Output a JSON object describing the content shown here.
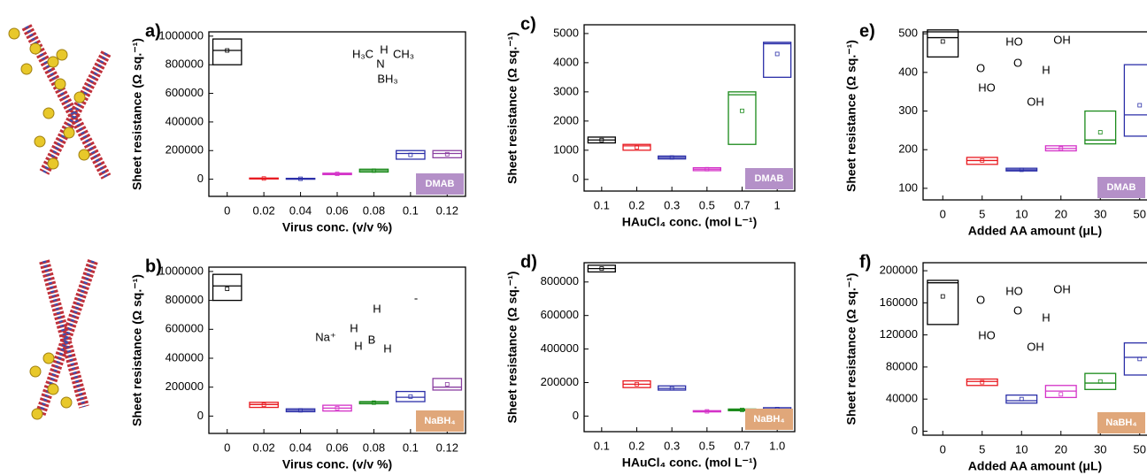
{
  "chart_data": [
    {
      "type": "box",
      "panel_label": "a)",
      "ylabel": "Sheet resistance (Ω sq.⁻¹)",
      "xlabel": "Virus conc. (v/v %)",
      "categories": [
        "0",
        "0.02",
        "0.04",
        "0.06",
        "0.08",
        "0.1",
        "0.12"
      ],
      "colors": [
        "#000000",
        "#e8191f",
        "#2b2fa8",
        "#d433c8",
        "#1a8a1a",
        "#2b2fa8",
        "#8a3fa0"
      ],
      "q1": [
        800000,
        2000,
        1000,
        32000,
        50000,
        140000,
        150000
      ],
      "q3": [
        980000,
        8000,
        6000,
        42000,
        70000,
        200000,
        200000
      ],
      "median": [
        900000,
        5000,
        3000,
        38000,
        60000,
        180000,
        180000
      ],
      "mean": [
        900000,
        5000,
        3000,
        37000,
        60000,
        170000,
        175000
      ],
      "ylim": [
        -120000,
        1030000
      ],
      "yticks": [
        0,
        200000,
        400000,
        600000,
        800000,
        1000000
      ],
      "badge": "DMAB",
      "badge_color": "#b490c8",
      "annotations": [
        "H₃C",
        "H",
        "N",
        "CH₃",
        "BH₃"
      ]
    },
    {
      "type": "box",
      "panel_label": "b)",
      "ylabel": "Sheet resistance (Ω sq.⁻¹)",
      "xlabel": "Virus conc. (v/v %)",
      "categories": [
        "0",
        "0.02",
        "0.04",
        "0.06",
        "0.08",
        "0.1",
        "0.12"
      ],
      "colors": [
        "#000000",
        "#e8191f",
        "#2b2fa8",
        "#d433c8",
        "#1a8a1a",
        "#2b2fa8",
        "#8a3fa0"
      ],
      "q1": [
        800000,
        60000,
        30000,
        35000,
        85000,
        100000,
        180000
      ],
      "q3": [
        980000,
        95000,
        50000,
        75000,
        100000,
        170000,
        260000
      ],
      "median": [
        900000,
        80000,
        40000,
        55000,
        95000,
        130000,
        200000
      ],
      "mean": [
        880000,
        78000,
        40000,
        55000,
        93000,
        135000,
        220000
      ],
      "ylim": [
        -120000,
        1030000
      ],
      "yticks": [
        0,
        200000,
        400000,
        600000,
        800000,
        1000000
      ],
      "badge": "NaBH₄",
      "badge_color": "#e0a77a",
      "annotations": [
        "Na⁺",
        "H",
        "H",
        "B",
        "H",
        "H",
        "-"
      ]
    },
    {
      "type": "box",
      "panel_label": "c)",
      "ylabel": "Sheet resistance (Ω sq.⁻¹)",
      "xlabel": "HAuCl₄ conc. (mol L⁻¹)",
      "categories": [
        "0.1",
        "0.2",
        "0.3",
        "0.5",
        "0.7",
        "1"
      ],
      "colors": [
        "#000000",
        "#e8191f",
        "#2b2fa8",
        "#d433c8",
        "#1a8a1a",
        "#2b2fa8"
      ],
      "q1": [
        1250,
        1000,
        700,
        300,
        1200,
        3500
      ],
      "q3": [
        1450,
        1200,
        800,
        400,
        3000,
        4700
      ],
      "median": [
        1350,
        1150,
        750,
        350,
        2900,
        4650
      ],
      "mean": [
        1350,
        1100,
        750,
        350,
        2350,
        4300
      ],
      "ylim": [
        -400,
        5300
      ],
      "yticks": [
        0,
        1000,
        2000,
        3000,
        4000,
        5000
      ],
      "badge": "DMAB",
      "badge_color": "#b490c8",
      "annotations": []
    },
    {
      "type": "box",
      "panel_label": "d)",
      "ylabel": "Sheet resistance (Ω sq.⁻¹)",
      "xlabel": "HAuCl₄ conc. (mol L⁻¹)",
      "categories": [
        "0.1",
        "0.2",
        "0.3",
        "0.5",
        "0.7",
        "1.0"
      ],
      "colors": [
        "#000000",
        "#e8191f",
        "#2b2fa8",
        "#d433c8",
        "#1a8a1a",
        "#2b2fa8"
      ],
      "q1": [
        860000,
        170000,
        155000,
        25000,
        32000,
        35000
      ],
      "q3": [
        900000,
        210000,
        180000,
        32000,
        42000,
        50000
      ],
      "median": [
        880000,
        190000,
        165000,
        28000,
        37000,
        42000
      ],
      "mean": [
        880000,
        190000,
        165000,
        28000,
        37000,
        42000
      ],
      "ylim": [
        -93000,
        915000
      ],
      "yticks": [
        0,
        200000,
        400000,
        600000,
        800000
      ],
      "badge": "NaBH₄",
      "badge_color": "#e0a77a",
      "annotations": []
    },
    {
      "type": "box",
      "panel_label": "e)",
      "ylabel": "Sheet resistance (Ω sq.⁻¹)",
      "xlabel": "Added AA amount (μL)",
      "categories": [
        "0",
        "5",
        "10",
        "20",
        "30",
        "50"
      ],
      "colors": [
        "#000000",
        "#e8191f",
        "#2b2fa8",
        "#d433c8",
        "#1a8a1a",
        "#2b2fa8"
      ],
      "q1": [
        440,
        162,
        145,
        197,
        215,
        235
      ],
      "q3": [
        510,
        180,
        152,
        210,
        300,
        420
      ],
      "median": [
        490,
        172,
        148,
        203,
        225,
        290
      ],
      "mean": [
        480,
        172,
        148,
        203,
        245,
        315
      ],
      "ylim": [
        70,
        505
      ],
      "yticks": [
        100,
        200,
        300,
        400,
        500
      ],
      "badge": "DMAB",
      "badge_color": "#b490c8",
      "annotations": [
        "O",
        "HO",
        "OH",
        "O",
        "H",
        "HO",
        "OH"
      ]
    },
    {
      "type": "box",
      "panel_label": "f)",
      "ylabel": "Sheet resistance (Ω sq.⁻¹)",
      "xlabel": "Added AA amount (μL)",
      "categories": [
        "0",
        "5",
        "10",
        "20",
        "30",
        "50"
      ],
      "colors": [
        "#000000",
        "#e8191f",
        "#2b2fa8",
        "#d433c8",
        "#1a8a1a",
        "#2b2fa8"
      ],
      "q1": [
        133000,
        57000,
        35000,
        42000,
        52000,
        70000
      ],
      "q3": [
        188000,
        65000,
        45000,
        57000,
        72000,
        110000
      ],
      "median": [
        185000,
        62000,
        38000,
        50000,
        60000,
        92000
      ],
      "mean": [
        168000,
        61000,
        40000,
        46000,
        62000,
        90000
      ],
      "ylim": [
        -5000,
        210000
      ],
      "yticks": [
        0,
        40000,
        80000,
        120000,
        160000,
        200000
      ],
      "badge": "NaBH₄",
      "badge_color": "#e0a77a",
      "annotations": [
        "O",
        "HO",
        "OH",
        "O",
        "H",
        "HO",
        "OH"
      ]
    }
  ]
}
